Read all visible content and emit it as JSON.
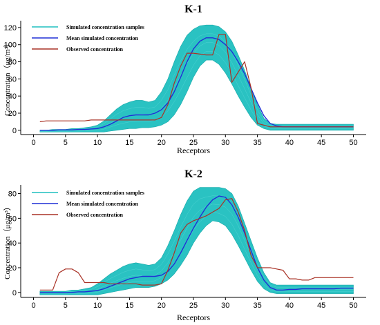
{
  "chart_data": [
    {
      "type": "line",
      "title": "K-1",
      "xlabel": "Receptors",
      "ylabel": "Concentration（μg/m³）",
      "xlim": [
        -2,
        52
      ],
      "ylim": [
        -5,
        128
      ],
      "xticks": [
        0,
        5,
        10,
        15,
        20,
        25,
        30,
        35,
        40,
        45,
        50
      ],
      "yticks": [
        0,
        20,
        40,
        60,
        80,
        100,
        120
      ],
      "grid": false,
      "legend_position": "top-left",
      "x": [
        1,
        2,
        3,
        4,
        5,
        6,
        7,
        8,
        9,
        10,
        11,
        12,
        13,
        14,
        15,
        16,
        17,
        18,
        19,
        20,
        21,
        22,
        23,
        24,
        25,
        26,
        27,
        28,
        29,
        30,
        31,
        32,
        33,
        34,
        35,
        36,
        37,
        38,
        39,
        40,
        41,
        42,
        43,
        44,
        45,
        46,
        47,
        48,
        49,
        50
      ],
      "band": {
        "name": "Simulated concentration samples",
        "color": "#1fbfbf",
        "lower": [
          -2,
          -2,
          -2,
          -2,
          -2,
          -2,
          -2,
          -2,
          -2,
          -2,
          -2,
          -1,
          0,
          1,
          2,
          2,
          3,
          3,
          4,
          6,
          10,
          18,
          30,
          45,
          62,
          75,
          82,
          82,
          77,
          67,
          54,
          40,
          27,
          15,
          6,
          2,
          0,
          0,
          0,
          0,
          0,
          0,
          0,
          0,
          0,
          0,
          0,
          0,
          0,
          0
        ],
        "upper": [
          0,
          0,
          1,
          1,
          1,
          2,
          2,
          3,
          4,
          6,
          11,
          18,
          25,
          30,
          33,
          35,
          35,
          33,
          35,
          45,
          60,
          80,
          98,
          111,
          118,
          122,
          123,
          123,
          121,
          115,
          104,
          88,
          70,
          50,
          30,
          14,
          8,
          7,
          7,
          7,
          7,
          7,
          7,
          7,
          7,
          7,
          7,
          7,
          7,
          7
        ]
      },
      "series": [
        {
          "name": "Mean simulated concentration",
          "color": "#1f2fd6",
          "values": [
            0,
            0,
            0,
            0.5,
            0.5,
            0.5,
            1,
            1,
            1.5,
            2,
            4,
            7,
            11,
            15,
            17,
            18,
            18,
            18,
            20,
            24,
            32,
            45,
            62,
            80,
            95,
            104,
            108,
            108,
            106,
            100,
            92,
            80,
            66,
            49,
            32,
            17,
            8,
            5,
            4,
            4,
            4,
            4,
            4,
            4,
            4,
            4,
            4,
            4,
            4,
            4
          ]
        },
        {
          "name": "Observed concentration",
          "color": "#a93226",
          "values": [
            10,
            11,
            11,
            11,
            11,
            11,
            11,
            11,
            12,
            12,
            12,
            12,
            12,
            12,
            12,
            12,
            12,
            12,
            12,
            15,
            30,
            55,
            75,
            90,
            90,
            89,
            88,
            88,
            112,
            112,
            56,
            68,
            80,
            50,
            8,
            6,
            4,
            4,
            4,
            4,
            4,
            4,
            4,
            4,
            4,
            4,
            4,
            4,
            4,
            4
          ]
        }
      ]
    },
    {
      "type": "line",
      "title": "K-2",
      "xlabel": "Receptors",
      "ylabel": "Concentration（μg/m³）",
      "xlim": [
        -2,
        52
      ],
      "ylim": [
        -4,
        87
      ],
      "xticks": [
        0,
        5,
        10,
        15,
        20,
        25,
        30,
        35,
        40,
        45,
        50
      ],
      "yticks": [
        0,
        20,
        40,
        60,
        80
      ],
      "grid": false,
      "legend_position": "top-left",
      "x": [
        1,
        2,
        3,
        4,
        5,
        6,
        7,
        8,
        9,
        10,
        11,
        12,
        13,
        14,
        15,
        16,
        17,
        18,
        19,
        20,
        21,
        22,
        23,
        24,
        25,
        26,
        27,
        28,
        29,
        30,
        31,
        32,
        33,
        34,
        35,
        36,
        37,
        38,
        39,
        40,
        41,
        42,
        43,
        44,
        45,
        46,
        47,
        48,
        49,
        50
      ],
      "band": {
        "name": "Simulated concentration samples",
        "color": "#1fbfbf",
        "lower": [
          -2,
          -2,
          -2,
          -2,
          -2,
          -2,
          -2,
          -2,
          -2,
          -2,
          -1,
          0,
          1,
          2,
          3,
          4,
          4,
          4,
          5,
          7,
          10,
          15,
          22,
          30,
          40,
          48,
          54,
          58,
          57,
          54,
          47,
          38,
          28,
          18,
          9,
          3,
          0,
          -1,
          -1,
          -1,
          -1,
          -1,
          -1,
          -1,
          -1,
          -1,
          -1,
          -1,
          -1,
          -1
        ],
        "upper": [
          1,
          1,
          1,
          1,
          1,
          2,
          2,
          3,
          4,
          7,
          11,
          15,
          18,
          21,
          23,
          24,
          23,
          22,
          23,
          28,
          38,
          50,
          63,
          74,
          82,
          85,
          85,
          85,
          85,
          84,
          80,
          70,
          56,
          42,
          28,
          16,
          8,
          6,
          6,
          6,
          6,
          6,
          6,
          6,
          6,
          6,
          6,
          6,
          6,
          6
        ]
      },
      "series": [
        {
          "name": "Mean simulated concentration",
          "color": "#1f2fd6",
          "values": [
            0,
            0,
            0,
            0,
            0,
            0,
            0.5,
            0.5,
            1,
            1.5,
            3,
            5,
            7,
            9,
            11,
            12,
            13,
            13,
            13,
            14,
            17,
            23,
            32,
            42,
            52,
            61,
            69,
            75,
            78,
            77,
            71,
            61,
            48,
            34,
            20,
            10,
            4,
            2,
            2,
            2.5,
            2.5,
            3,
            3,
            3,
            3,
            3,
            3,
            3.5,
            3.5,
            3.5
          ]
        },
        {
          "name": "Observed concentration",
          "color": "#a93226",
          "values": [
            2,
            2,
            2,
            16,
            19,
            19,
            16,
            8,
            8,
            8,
            8,
            7,
            7,
            7,
            7,
            7,
            6,
            6,
            6,
            7,
            18,
            32,
            48,
            55,
            58,
            60,
            62,
            65,
            68,
            75,
            76,
            65,
            50,
            30,
            20,
            20,
            20,
            19,
            18,
            11,
            11,
            10,
            10,
            12,
            12,
            12,
            12,
            12,
            12,
            12
          ]
        }
      ]
    }
  ]
}
